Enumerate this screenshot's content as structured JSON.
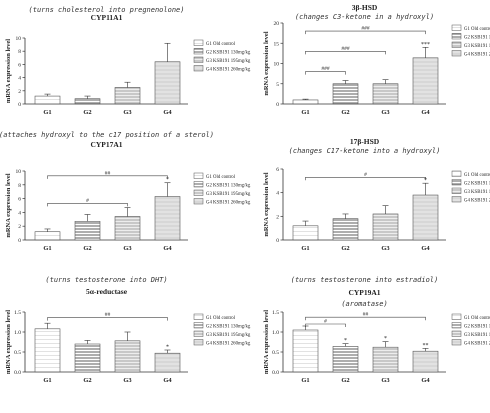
{
  "chart_data": [
    {
      "type": "bar",
      "title": "CYP11A1",
      "subtitle": "(turns cholesterol into pregnenolone)",
      "ylabel": "mRNA expression level",
      "categories": [
        "G1",
        "G2",
        "G3",
        "G4"
      ],
      "values": [
        1.2,
        0.8,
        2.5,
        6.4
      ],
      "errors": [
        0.3,
        0.4,
        0.8,
        2.8
      ],
      "ylim": [
        0,
        10
      ],
      "yticks": [
        "0",
        "2",
        "4",
        "6",
        "8",
        "10"
      ],
      "point_marks": [
        "",
        "",
        "",
        ""
      ],
      "brackets": [],
      "legend": [
        "G1 Old control",
        "G2 KSB191 130mg/kg",
        "G3 KSB191 195mg/kg",
        "G4 KSB191 260mg/kg"
      ],
      "legend_position": "top-right"
    },
    {
      "type": "bar",
      "title": "3β-HSD",
      "subtitle": "(changes C3-ketone in a hydroxyl)",
      "ylabel": "mRNA expression level",
      "categories": [
        "G1",
        "G2",
        "G3",
        "G4"
      ],
      "values": [
        1.0,
        5.0,
        5.0,
        11.4
      ],
      "errors": [
        0.2,
        0.8,
        1.0,
        2.6
      ],
      "ylim": [
        0,
        20
      ],
      "yticks": [
        "0",
        "5",
        "10",
        "15",
        "20"
      ],
      "point_marks": [
        "",
        "",
        "",
        "***"
      ],
      "brackets": [
        {
          "from": 0,
          "to": 1,
          "label": "###",
          "y": 8
        },
        {
          "from": 0,
          "to": 2,
          "label": "###",
          "y": 13
        },
        {
          "from": 0,
          "to": 3,
          "label": "###",
          "y": 18
        }
      ],
      "legend": [
        "G1 Old control",
        "G2 KSB191 130mg/kg",
        "G3 KSB191 195mg/kg",
        "G4 KSB191 260mg/kg"
      ],
      "legend_position": "top-right"
    },
    {
      "type": "bar",
      "title": "CYP17A1",
      "subtitle": "(attaches hydroxyl to the c17 position of a sterol)",
      "ylabel": "mRNA expression level",
      "categories": [
        "G1",
        "G2",
        "G3",
        "G4"
      ],
      "values": [
        1.2,
        2.7,
        3.4,
        6.3
      ],
      "errors": [
        0.4,
        1.0,
        1.3,
        2.0
      ],
      "ylim": [
        0,
        10
      ],
      "yticks": [
        "0",
        "2",
        "4",
        "6",
        "8",
        "10"
      ],
      "point_marks": [
        "",
        "",
        "",
        "*"
      ],
      "brackets": [
        {
          "from": 0,
          "to": 2,
          "label": "#",
          "y": 5.3
        },
        {
          "from": 0,
          "to": 3,
          "label": "##",
          "y": 9.3
        }
      ],
      "legend": [
        "G1 Old control",
        "G2 KSB191 130mg/kg",
        "G3 KSB191 195mg/kg",
        "G4 KSB191 260mg/kg"
      ],
      "legend_position": "top-right"
    },
    {
      "type": "bar",
      "title": "17β-HSD",
      "subtitle": "(changes C17-ketone into a hydroxyl)",
      "ylabel": "mRNA expression level",
      "categories": [
        "G1",
        "G2",
        "G3",
        "G4"
      ],
      "values": [
        1.2,
        1.8,
        2.2,
        3.8
      ],
      "errors": [
        0.4,
        0.4,
        0.7,
        1.0
      ],
      "ylim": [
        0,
        6
      ],
      "yticks": [
        "0",
        "2",
        "4",
        "6"
      ],
      "point_marks": [
        "",
        "",
        "",
        "*"
      ],
      "brackets": [
        {
          "from": 0,
          "to": 3,
          "label": "#",
          "y": 5.3
        }
      ],
      "legend": [
        "G1 Old control",
        "G2 KSB191 130mg/kg",
        "G3 KSB191 195mg/kg",
        "G4 KSB191 260mg/kg"
      ],
      "legend_position": "top-right"
    },
    {
      "type": "bar",
      "title": "5α-reductase",
      "subtitle": "(turns testosterone into DHT)",
      "ylabel": "mRNA expression level",
      "categories": [
        "G1",
        "G2",
        "G3",
        "G4"
      ],
      "values": [
        1.08,
        0.7,
        0.78,
        0.47
      ],
      "errors": [
        0.14,
        0.09,
        0.22,
        0.08
      ],
      "ylim": [
        0,
        1.5
      ],
      "yticks": [
        "0.0",
        "0.5",
        "1.0",
        "1.5"
      ],
      "point_marks": [
        "",
        "",
        "",
        "*"
      ],
      "brackets": [
        {
          "from": 0,
          "to": 3,
          "label": "##",
          "y": 1.36
        }
      ],
      "legend": [
        "G1 Old control",
        "G2 KSB191 130mg/kg",
        "G3 KSB191 195mg/kg",
        "G4 KSB191 260mg/kg"
      ],
      "legend_position": "top-right"
    },
    {
      "type": "bar",
      "title": "CYP19A1",
      "subtitle": "(turns testosterone into estradiol)",
      "subtitle2": "(aromatase)",
      "ylabel": "mRNA expression level",
      "categories": [
        "G1",
        "G2",
        "G3",
        "G4"
      ],
      "values": [
        1.05,
        0.64,
        0.62,
        0.52
      ],
      "errors": [
        0.1,
        0.07,
        0.14,
        0.07
      ],
      "ylim": [
        0,
        1.5
      ],
      "yticks": [
        "0.0",
        "0.5",
        "1.0",
        "1.5"
      ],
      "point_marks": [
        "",
        "*",
        "*",
        "**"
      ],
      "brackets": [
        {
          "from": 0,
          "to": 1,
          "label": "#",
          "y": 1.2
        },
        {
          "from": 0,
          "to": 3,
          "label": "##",
          "y": 1.37
        }
      ],
      "legend": [
        "G1 Old control",
        "G2 KSB191 130mg/kg",
        "G3 KSB191 195mg/kg",
        "G4 KSB191 260mg/kg"
      ],
      "legend_position": "top-right"
    }
  ]
}
